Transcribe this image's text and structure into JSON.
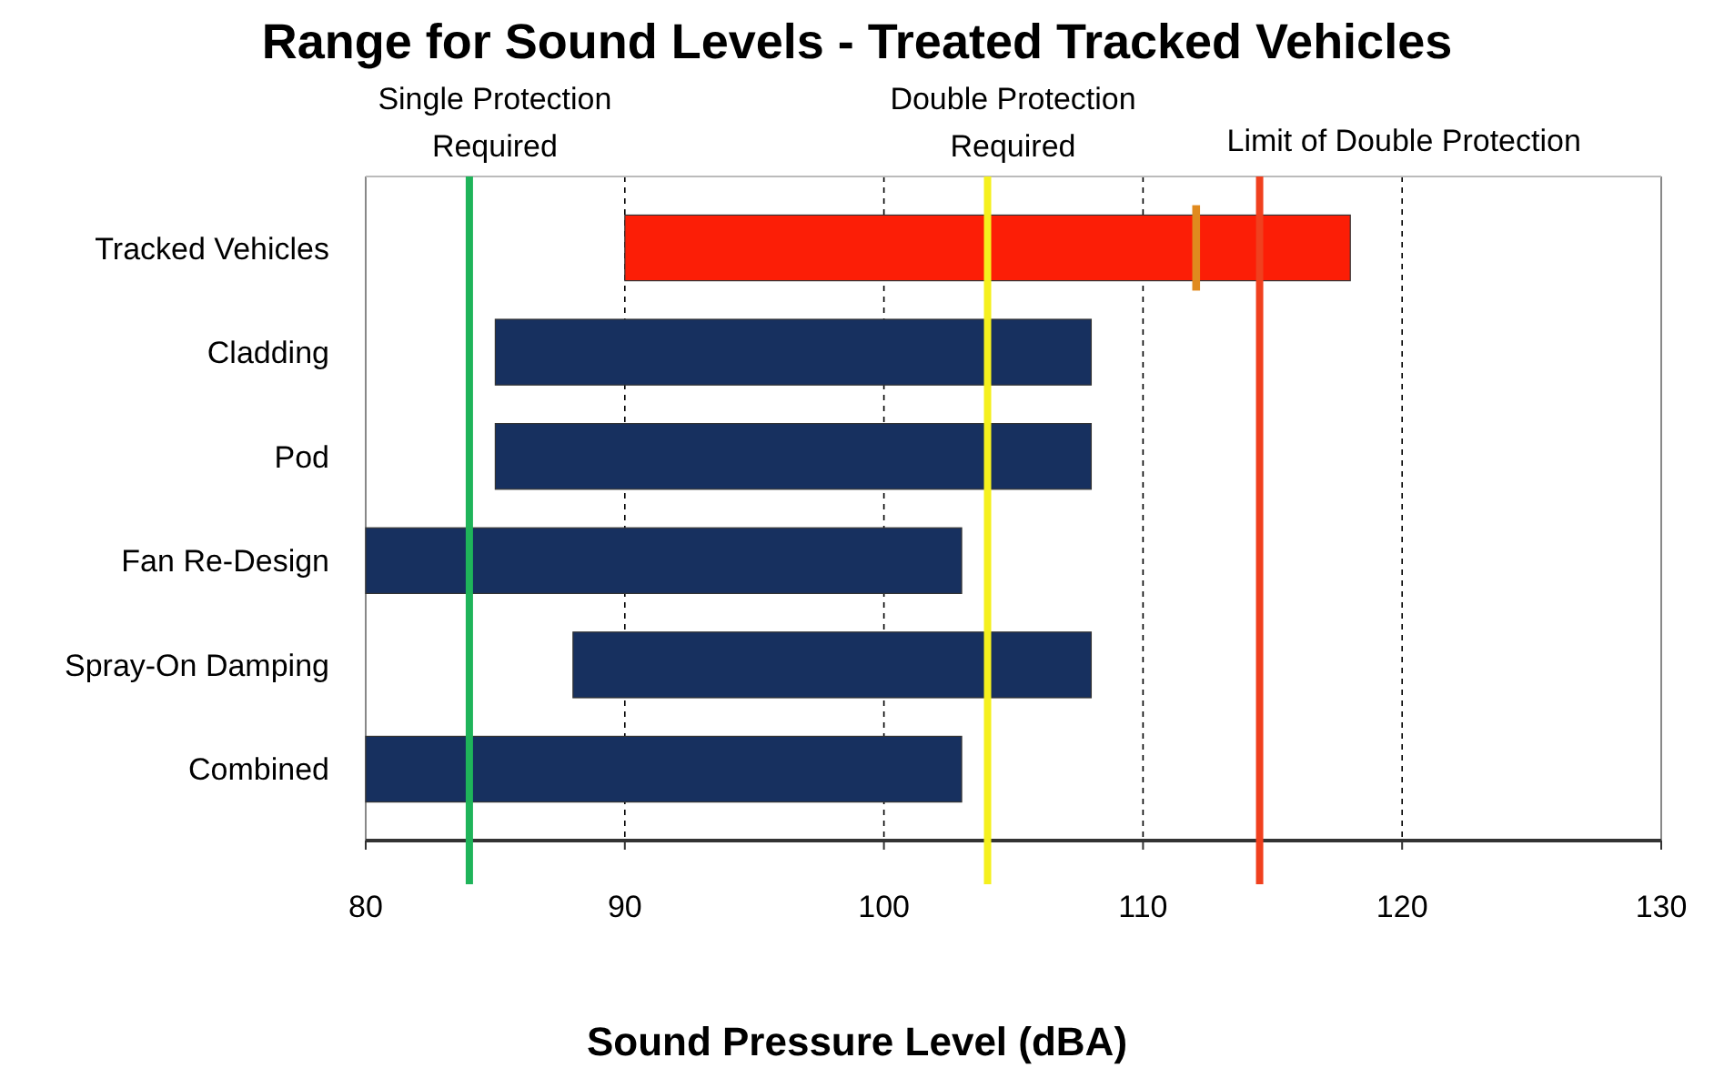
{
  "chart_data": {
    "type": "bar",
    "orientation": "horizontal",
    "title": "Range for Sound Levels - Treated Tracked Vehicles",
    "xlabel": "Sound Pressure Level (dBA)",
    "categories": [
      "Tracked Vehicles",
      "Cladding",
      "Pod",
      "Fan Re-Design",
      "Spray-On Damping",
      "Combined"
    ],
    "series": [
      {
        "type": "bar",
        "colors": [
          "#fc1e06",
          "#17305f",
          "#17305f",
          "#17305f",
          "#17305f",
          "#17305f"
        ],
        "base": [
          90,
          85,
          85,
          80,
          88,
          80
        ],
        "values": [
          28,
          23,
          23,
          23,
          20,
          23
        ]
      },
      {
        "type": "bar",
        "color": "#e08a1e",
        "base": [
          111.9,
          null,
          null,
          null,
          null,
          null
        ],
        "values": [
          0.3,
          null,
          null,
          null,
          null,
          null
        ]
      }
    ],
    "xlim": [
      80,
      130
    ],
    "xticks": [
      80,
      90,
      100,
      110,
      120,
      130
    ],
    "grid": "x",
    "ref_lines": [
      {
        "axis": "x",
        "value": 84,
        "label": "Single Protection\nRequired",
        "color": "#1fb45a"
      },
      {
        "axis": "x",
        "value": 104,
        "label": "Double Protection\nRequired",
        "color": "#f5f01e"
      },
      {
        "axis": "x",
        "value": 114.5,
        "label": "Limit of Double Protection",
        "color": "#f0401e"
      }
    ]
  }
}
